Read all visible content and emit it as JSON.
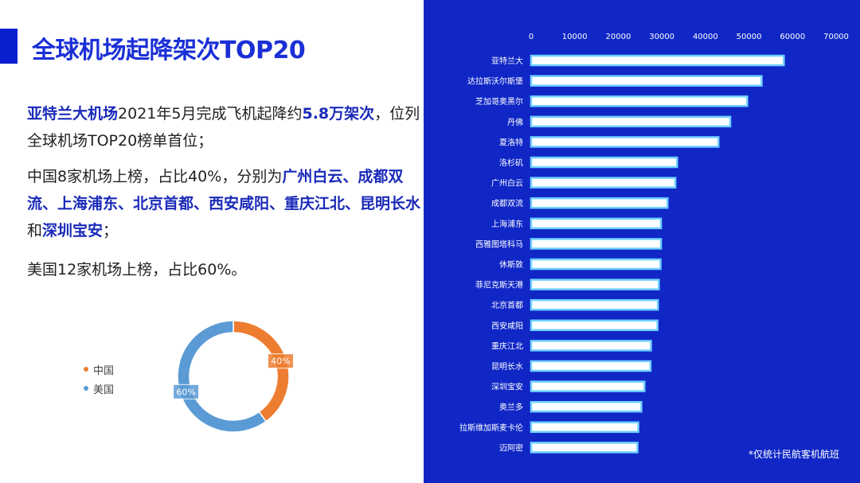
{
  "title": "全球机场起降架次TOP20",
  "p1": {
    "a": "亚特兰大机场",
    "b": "2021年5月完成飞机起降约",
    "c": "5.8万架次",
    "d": "，位列全球机场TOP20榜单首位；"
  },
  "p2": {
    "a": "中国8家机场上榜，占比40%，分别为",
    "b": "广州白云、成都双流、上海浦东、北京首都、西安咸阳、重庆江北、昆明长水",
    "c": "和",
    "d": "深圳宝安",
    "e": "；"
  },
  "p3": "美国12家机场上榜，占比60%。",
  "note": "*仅统计民航客机航班",
  "colors": {
    "bar_fill": "#ffffff",
    "bar_stroke": "#6fd0ff",
    "china": "#ed7d31",
    "usa": "#5b9bd5",
    "right_bg": "#1027c6"
  },
  "chart_data": [
    {
      "type": "bar",
      "orientation": "horizontal",
      "categories": [
        "亚特兰大",
        "达拉斯沃尔斯堡",
        "芝加哥奥黑尔",
        "丹佛",
        "夏洛特",
        "洛杉矶",
        "广州白云",
        "成都双流",
        "上海浦东",
        "西雅图塔科马",
        "休斯敦",
        "菲尼克斯天港",
        "北京首都",
        "西安咸阳",
        "重庆江北",
        "昆明长水",
        "深圳宝安",
        "奥兰多",
        "拉斯维加斯麦卡伦",
        "迈阿密"
      ],
      "values": [
        58000,
        52900,
        49600,
        45700,
        43000,
        33500,
        33100,
        31300,
        29800,
        29800,
        29700,
        29300,
        29100,
        29000,
        27500,
        27400,
        26000,
        25300,
        24600,
        24400
      ],
      "xlim": [
        0,
        70000
      ],
      "xticks": [
        0,
        10000,
        20000,
        30000,
        40000,
        50000,
        60000,
        70000
      ],
      "grid": false
    },
    {
      "type": "pie",
      "style": "donut",
      "labels": [
        "中国",
        "美国"
      ],
      "values": [
        40,
        60
      ],
      "data_labels": [
        "40%",
        "60%"
      ],
      "legend": "left"
    }
  ]
}
